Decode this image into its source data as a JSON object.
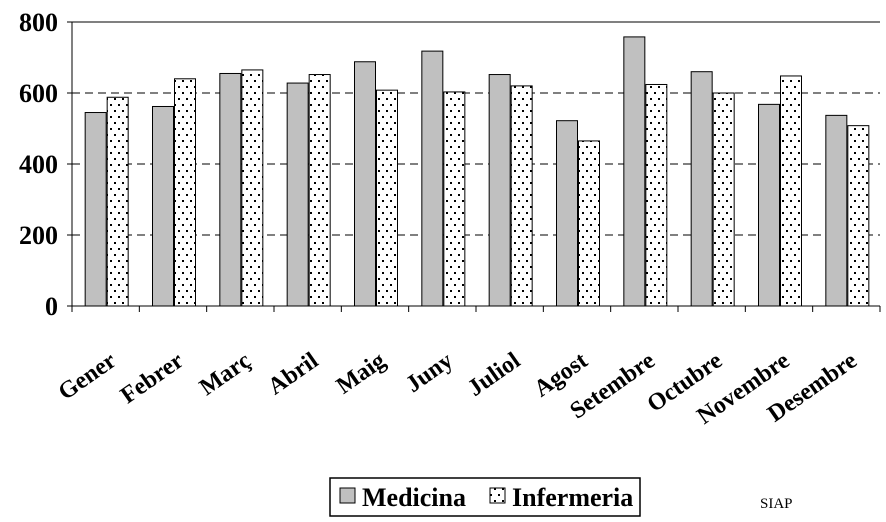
{
  "chart_data": {
    "type": "bar",
    "categories": [
      "Gener",
      "Febrer",
      "Març",
      "Abril",
      "Maig",
      "Juny",
      "Juliol",
      "Agost",
      "Setembre",
      "Octubre",
      "Novembre",
      "Desembre"
    ],
    "series": [
      {
        "name": "Medicina",
        "values": [
          545,
          562,
          655,
          628,
          688,
          718,
          652,
          522,
          758,
          660,
          568,
          537
        ],
        "color": "#c0c0c0",
        "pattern": "solid"
      },
      {
        "name": "Infermeria",
        "values": [
          588,
          640,
          665,
          652,
          608,
          603,
          620,
          465,
          624,
          600,
          648,
          508
        ],
        "color": "#ffffff",
        "pattern": "dotted"
      }
    ],
    "y_ticks": [
      "0",
      "200",
      "400",
      "600",
      "800"
    ],
    "ylim": [
      0,
      800
    ],
    "grid": "dashed horizontal",
    "legend_position": "bottom"
  },
  "footnote": "SIAP"
}
